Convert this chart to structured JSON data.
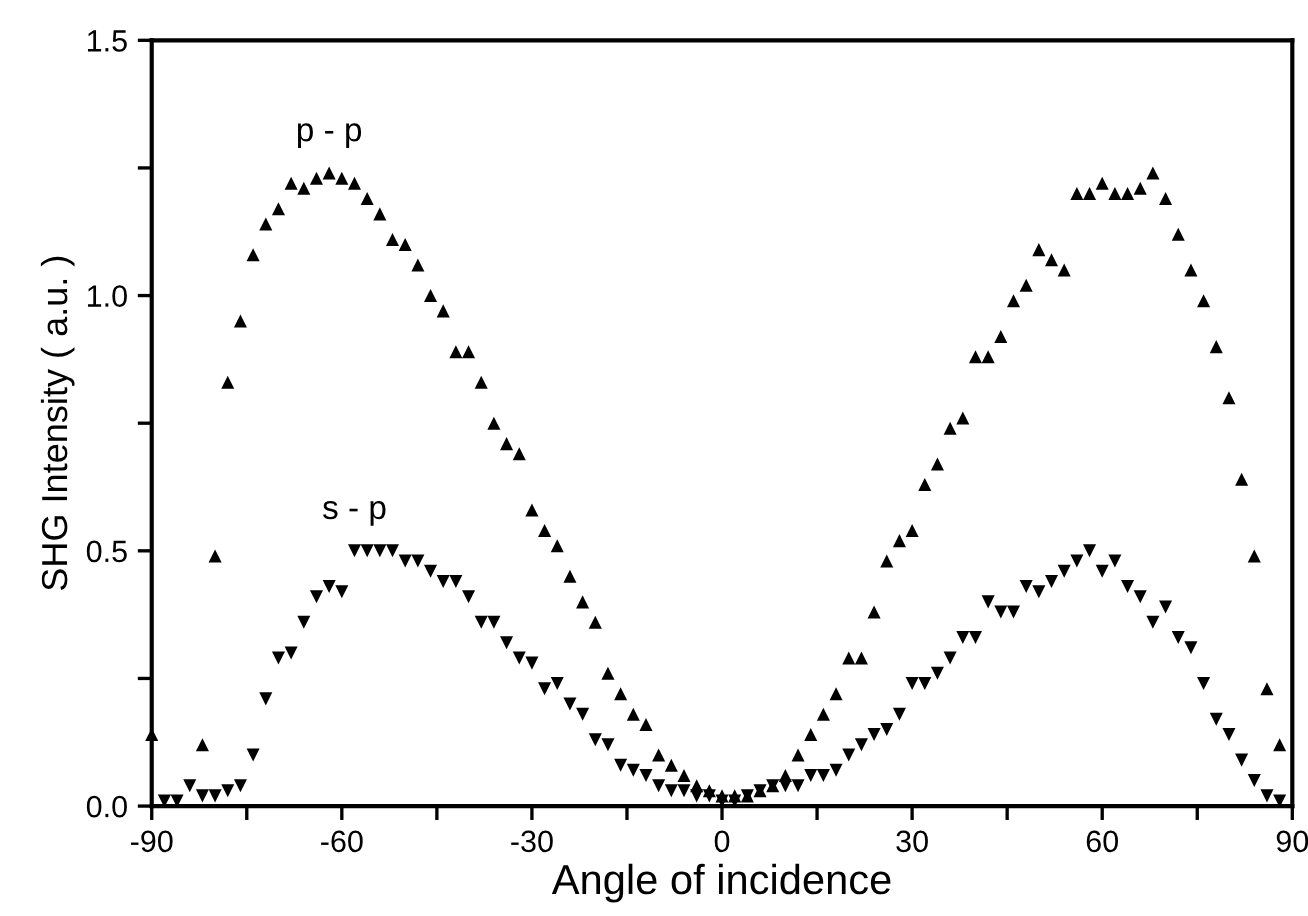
{
  "chart_data": {
    "type": "scatter",
    "xlabel": "Angle of incidence",
    "ylabel": "SHG Intensity ( a.u. )",
    "xlim": [
      -90,
      90
    ],
    "ylim": [
      0,
      1.5
    ],
    "xticks": [
      -90,
      {
        "value": -75,
        "label": null
      },
      -60,
      {
        "value": -45,
        "label": null
      },
      -30,
      {
        "value": -15,
        "label": null
      },
      0,
      {
        "value": 15,
        "label": null
      },
      30,
      {
        "value": 45,
        "label": null
      },
      60,
      {
        "value": 75,
        "label": null
      },
      90
    ],
    "yticks": [
      {
        "value": 0,
        "label": "0.0"
      },
      {
        "value": 0.25,
        "label": null
      },
      {
        "value": 0.5,
        "label": "0.5"
      },
      {
        "value": 0.75,
        "label": null
      },
      {
        "value": 1.0,
        "label": "1.0"
      },
      {
        "value": 1.25,
        "label": null
      },
      {
        "value": 1.5,
        "label": "1.5"
      }
    ],
    "grid": false,
    "legend": false,
    "series": [
      {
        "name": "p - p",
        "color": "#000000",
        "marker": "triangle",
        "x": [
          -90,
          -82,
          -80,
          -78,
          -76,
          -74,
          -72,
          -70,
          -68,
          -66,
          -64,
          -62,
          -60,
          -58,
          -56,
          -54,
          -52,
          -50,
          -48,
          -46,
          -44,
          -42,
          -40,
          -38,
          -36,
          -34,
          -32,
          -30,
          -28,
          -26,
          -24,
          -22,
          -20,
          -18,
          -16,
          -14,
          -12,
          -10,
          -8,
          -6,
          -4,
          -2,
          0,
          2,
          4,
          6,
          8,
          10,
          12,
          14,
          16,
          18,
          20,
          22,
          24,
          26,
          28,
          30,
          32,
          34,
          36,
          38,
          40,
          42,
          44,
          46,
          48,
          50,
          52,
          54,
          56,
          58,
          60,
          62,
          64,
          66,
          68,
          70,
          72,
          74,
          76,
          78,
          80,
          82,
          84,
          86,
          88
        ],
        "values": [
          0.14,
          0.12,
          0.49,
          0.83,
          0.95,
          1.08,
          1.14,
          1.17,
          1.22,
          1.21,
          1.23,
          1.24,
          1.23,
          1.22,
          1.19,
          1.16,
          1.11,
          1.1,
          1.06,
          1.0,
          0.97,
          0.89,
          0.89,
          0.83,
          0.75,
          0.71,
          0.69,
          0.58,
          0.54,
          0.51,
          0.45,
          0.4,
          0.36,
          0.26,
          0.22,
          0.18,
          0.16,
          0.1,
          0.08,
          0.06,
          0.04,
          0.03,
          0.02,
          0.02,
          0.02,
          0.03,
          0.04,
          0.06,
          0.1,
          0.14,
          0.18,
          0.22,
          0.29,
          0.29,
          0.38,
          0.48,
          0.52,
          0.54,
          0.63,
          0.67,
          0.74,
          0.76,
          0.88,
          0.88,
          0.92,
          0.99,
          1.02,
          1.09,
          1.07,
          1.05,
          1.2,
          1.2,
          1.22,
          1.2,
          1.2,
          1.21,
          1.24,
          1.19,
          1.12,
          1.05,
          0.99,
          0.9,
          0.8,
          0.64,
          0.49,
          0.23,
          0.12
        ]
      },
      {
        "name": "s - p",
        "color": "#000000",
        "marker": "triangle_down",
        "x": [
          -88,
          -86,
          -84,
          -82,
          -80,
          -78,
          -76,
          -74,
          -72,
          -70,
          -68,
          -66,
          -64,
          -62,
          -60,
          -58,
          -56,
          -54,
          -52,
          -50,
          -48,
          -46,
          -44,
          -42,
          -40,
          -38,
          -36,
          -34,
          -32,
          -30,
          -28,
          -26,
          -24,
          -22,
          -20,
          -18,
          -16,
          -14,
          -12,
          -10,
          -8,
          -6,
          -4,
          -2,
          0,
          2,
          4,
          6,
          8,
          10,
          12,
          14,
          16,
          18,
          20,
          22,
          24,
          26,
          28,
          30,
          32,
          34,
          36,
          38,
          40,
          42,
          44,
          46,
          48,
          50,
          52,
          54,
          56,
          58,
          60,
          62,
          64,
          66,
          68,
          70,
          72,
          74,
          76,
          78,
          80,
          82,
          84,
          86,
          88
        ],
        "values": [
          0.01,
          0.01,
          0.04,
          0.02,
          0.02,
          0.03,
          0.04,
          0.1,
          0.21,
          0.29,
          0.3,
          0.36,
          0.41,
          0.43,
          0.42,
          0.5,
          0.5,
          0.5,
          0.5,
          0.48,
          0.48,
          0.46,
          0.44,
          0.44,
          0.41,
          0.36,
          0.36,
          0.32,
          0.29,
          0.28,
          0.23,
          0.24,
          0.2,
          0.18,
          0.13,
          0.12,
          0.08,
          0.07,
          0.06,
          0.04,
          0.03,
          0.03,
          0.02,
          0.02,
          0.01,
          0.01,
          0.02,
          0.03,
          0.04,
          0.04,
          0.04,
          0.06,
          0.06,
          0.07,
          0.1,
          0.12,
          0.14,
          0.15,
          0.18,
          0.24,
          0.24,
          0.26,
          0.29,
          0.33,
          0.33,
          0.4,
          0.38,
          0.38,
          0.43,
          0.42,
          0.44,
          0.46,
          0.48,
          0.5,
          0.46,
          0.48,
          0.43,
          0.41,
          0.36,
          0.39,
          0.33,
          0.31,
          0.24,
          0.17,
          0.14,
          0.09,
          0.05,
          0.02,
          0.01
        ]
      }
    ]
  }
}
